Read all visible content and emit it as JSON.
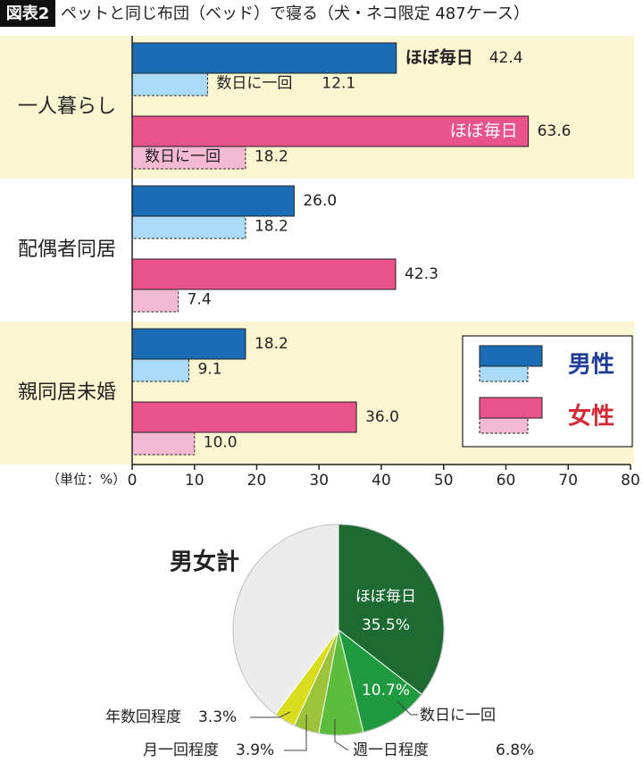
{
  "chart_data": [
    {
      "type": "bar",
      "badge": "図表2",
      "title": "ペットと同じ布団（ベッド）で寝る（犬・ネコ限定 487ケース）",
      "unit_label": "（単位：%）",
      "categories": [
        "一人暮らし",
        "配偶者同居",
        "親同居未婚"
      ],
      "subcategories": [
        "ほぼ毎日",
        "数日に一回"
      ],
      "series": [
        {
          "name": "男性",
          "color": "#1a6cb5",
          "light_color": "#aadbf6",
          "text_color": "#1f3c98",
          "values": [
            [
              42.4,
              12.1
            ],
            [
              26.0,
              18.2
            ],
            [
              18.2,
              9.1
            ]
          ],
          "value_labels": [
            [
              "42.4",
              "12.1"
            ],
            [
              "26.0",
              "18.2"
            ],
            [
              "18.2",
              "9.1"
            ]
          ]
        },
        {
          "name": "女性",
          "color": "#e8548a",
          "light_color": "#f4b9d3",
          "text_color": "#d42a35",
          "values": [
            [
              63.6,
              18.2
            ],
            [
              42.3,
              7.4
            ],
            [
              36.0,
              10.0
            ]
          ],
          "value_labels": [
            [
              "63.6",
              "18.2"
            ],
            [
              "42.3",
              "7.4"
            ],
            [
              "36.0",
              "10.0"
            ]
          ]
        }
      ],
      "xlim": [
        0,
        80
      ],
      "xticks": [
        0,
        10,
        20,
        30,
        40,
        50,
        60,
        70,
        80
      ]
    },
    {
      "type": "pie",
      "title": "男女計",
      "categories": [
        "ほぼ毎日",
        "数日に一回",
        "週一日程度",
        "月一回程度",
        "年数回程度",
        null
      ],
      "values": [
        35.5,
        10.7,
        6.8,
        3.9,
        3.3,
        39.8
      ],
      "value_labels": [
        "35.5%",
        "10.7%",
        "6.8%",
        "3.9%",
        "3.3%",
        null
      ],
      "colors": [
        "#1d6b33",
        "#1f9a3e",
        "#5cbd3c",
        "#9cc33a",
        "#dadd1e",
        "#ececec"
      ]
    }
  ]
}
